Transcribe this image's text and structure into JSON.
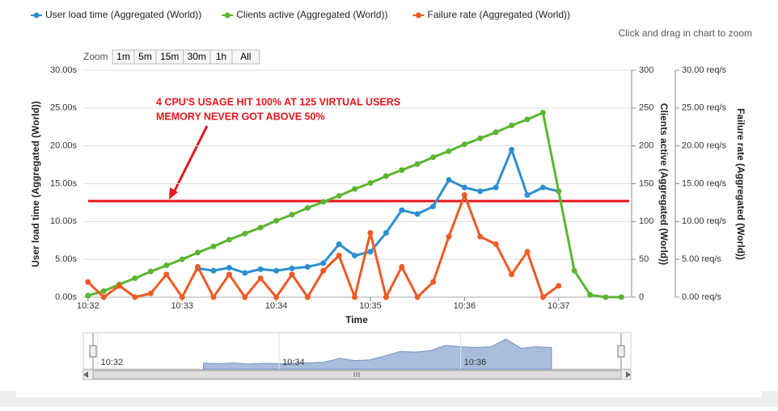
{
  "chart_data": {
    "type": "line",
    "zoom_hint": "Click and drag in chart to zoom",
    "zoom": {
      "label": "Zoom",
      "buttons": [
        "1m",
        "5m",
        "15m",
        "30m",
        "1h",
        "All"
      ]
    },
    "x_label": "Time",
    "y_label": "User load time (Aggregated (World))",
    "y2_label": "Clients active (Aggregated (World))",
    "y3_label": "Failure rate (Aggregated (World))",
    "x": [
      37920,
      37930,
      37940,
      37950,
      37960,
      37970,
      37980,
      37990,
      38000,
      38010,
      38020,
      38030,
      38040,
      38050,
      38060,
      38070,
      38080,
      38090,
      38100,
      38110,
      38120,
      38130,
      38140,
      38150,
      38160,
      38170,
      38180,
      38190,
      38200,
      38210,
      38220,
      38230,
      38240,
      38250,
      38260
    ],
    "xlim": [
      37917,
      38266
    ],
    "xticks": [
      {
        "value": 37920,
        "label": "10:32"
      },
      {
        "value": 37980,
        "label": "10:33"
      },
      {
        "value": 38040,
        "label": "10:34"
      },
      {
        "value": 38100,
        "label": "10:35"
      },
      {
        "value": 38160,
        "label": "10:36"
      },
      {
        "value": 38220,
        "label": "10:37"
      }
    ],
    "ylim": [
      0,
      30
    ],
    "yticks": [
      {
        "value": 0,
        "label": "0.00s"
      },
      {
        "value": 5,
        "label": "5.00s"
      },
      {
        "value": 10,
        "label": "10.00s"
      },
      {
        "value": 15,
        "label": "15.00s"
      },
      {
        "value": 20,
        "label": "20.00s"
      },
      {
        "value": 25,
        "label": "25.00s"
      },
      {
        "value": 30,
        "label": "30.00s"
      }
    ],
    "y2lim": [
      0,
      300
    ],
    "y2ticks": [
      0,
      50,
      100,
      150,
      200,
      250,
      300
    ],
    "y3lim": [
      0,
      30
    ],
    "y3ticks": [
      {
        "value": 0,
        "label": "0.00 req/s"
      },
      {
        "value": 5,
        "label": "5.00 req/s"
      },
      {
        "value": 10,
        "label": "10.00 req/s"
      },
      {
        "value": 15,
        "label": "15.00 req/s"
      },
      {
        "value": 20,
        "label": "20.00 req/s"
      },
      {
        "value": 25,
        "label": "25.00 req/s"
      },
      {
        "value": 30,
        "label": "30.00 req/s"
      }
    ],
    "grid": true,
    "series": [
      {
        "name": "User load time (Aggregated (World))",
        "color": "#2c8fd1",
        "axis": "y",
        "values": [
          null,
          null,
          null,
          null,
          null,
          null,
          null,
          3.8,
          3.5,
          3.9,
          3.2,
          3.7,
          3.5,
          3.8,
          4,
          4.5,
          7,
          5.5,
          6,
          8.5,
          11.5,
          11,
          12,
          15.5,
          14.5,
          14,
          14.5,
          19.5,
          13.5,
          14.5,
          14,
          null,
          null,
          null,
          null
        ]
      },
      {
        "name": "Clients active (Aggregated (World))",
        "color": "#5cb531",
        "axis": "y2",
        "values": [
          2,
          8,
          17,
          25,
          34,
          42,
          50,
          59,
          67,
          76,
          84,
          92,
          101,
          109,
          118,
          126,
          134,
          143,
          151,
          160,
          168,
          176,
          185,
          193,
          202,
          210,
          218,
          227,
          235,
          244,
          140,
          35,
          3,
          0,
          0
        ]
      },
      {
        "name": "Failure rate (Aggregated (World))",
        "color": "#f05a24",
        "axis": "y3",
        "values": [
          2,
          0,
          1.5,
          0,
          0.5,
          3,
          0,
          4,
          0,
          3,
          0,
          2.5,
          0,
          3,
          0,
          3.5,
          5.5,
          0,
          8.5,
          0,
          4,
          0,
          2,
          8,
          13.5,
          8,
          7,
          3,
          6,
          0,
          1.5,
          null,
          null,
          null,
          null
        ]
      }
    ],
    "plot_lines": [
      {
        "value": 12.7,
        "color": "#e8151b",
        "axis": "y"
      }
    ],
    "annotations": [
      "4 CPU'S USAGE HIT 100% AT 125 VIRTUAL USERS",
      "MEMORY NEVER GOT ABOVE 50%"
    ],
    "annotation_color": "#e8151b",
    "navigator": {
      "series": 0,
      "xticks": [
        {
          "value": 37920,
          "label": "10:32"
        },
        {
          "value": 38040,
          "label": "10:34"
        },
        {
          "value": 38160,
          "label": "10:36"
        }
      ]
    }
  }
}
